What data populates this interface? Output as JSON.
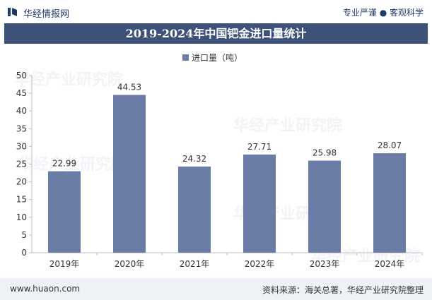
{
  "header": {
    "brand": "华经情报网",
    "slogan": "专业严谨 ● 客观科学"
  },
  "title": "2019-2024年中国钯金进口量统计",
  "watermark": "华经产业研究院",
  "legend": {
    "label": "进口量（吨）"
  },
  "footer": {
    "url": "www.huaon.com",
    "source": "资料来源：海关总署，华经产业研究院整理"
  },
  "colors": {
    "bar": "#6b7da7",
    "title_bg": "#3d5179",
    "accent": "#1f3a68"
  },
  "chart_data": {
    "type": "bar",
    "categories": [
      "2019年",
      "2020年",
      "2021年",
      "2022年",
      "2023年",
      "2024年"
    ],
    "series": [
      {
        "name": "进口量（吨）",
        "values": [
          22.99,
          44.53,
          24.32,
          27.71,
          25.98,
          28.07
        ]
      }
    ],
    "data_labels": [
      "22.99",
      "44.53",
      "24.32",
      "27.71",
      "25.98",
      "28.07"
    ],
    "ylim": [
      0,
      50
    ],
    "yticks": [
      0,
      5,
      10,
      15,
      20,
      25,
      30,
      35,
      40,
      45,
      50
    ],
    "grid": false,
    "legend_position": "top-center"
  }
}
